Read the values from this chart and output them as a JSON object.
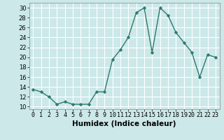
{
  "x": [
    0,
    1,
    2,
    3,
    4,
    5,
    6,
    7,
    8,
    9,
    10,
    11,
    12,
    13,
    14,
    15,
    16,
    17,
    18,
    19,
    20,
    21,
    22,
    23
  ],
  "y": [
    13.5,
    13,
    12,
    10.5,
    11,
    10.5,
    10.5,
    10.5,
    13,
    13,
    19.5,
    21.5,
    24,
    29,
    30,
    21,
    30,
    28.5,
    25,
    23,
    21,
    16,
    20.5,
    20
  ],
  "line_color": "#2d7a6e",
  "marker": "D",
  "marker_size": 2.2,
  "linewidth": 1.0,
  "xlabel": "Humidex (Indice chaleur)",
  "xlim": [
    -0.5,
    23.5
  ],
  "ylim": [
    9.5,
    31
  ],
  "yticks": [
    10,
    12,
    14,
    16,
    18,
    20,
    22,
    24,
    26,
    28,
    30
  ],
  "xticks": [
    0,
    1,
    2,
    3,
    4,
    5,
    6,
    7,
    8,
    9,
    10,
    11,
    12,
    13,
    14,
    15,
    16,
    17,
    18,
    19,
    20,
    21,
    22,
    23
  ],
  "xtick_labels": [
    "0",
    "1",
    "2",
    "3",
    "4",
    "5",
    "6",
    "7",
    "8",
    "9",
    "10",
    "11",
    "12",
    "13",
    "14",
    "15",
    "16",
    "17",
    "18",
    "19",
    "20",
    "21",
    "22",
    "23"
  ],
  "bg_color": "#cce8e8",
  "grid_color": "#ffffff",
  "xlabel_fontsize": 7.5,
  "tick_fontsize": 6.0
}
